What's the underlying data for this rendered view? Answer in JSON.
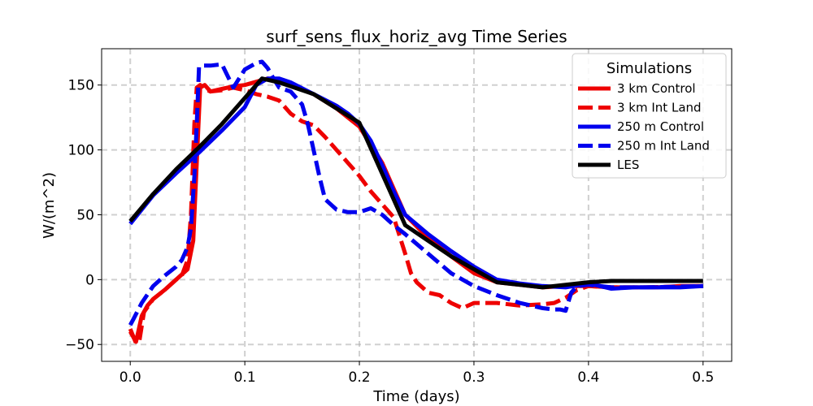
{
  "chart_data": {
    "type": "line",
    "title": "surf_sens_flux_horiz_avg Time Series",
    "xlabel": "Time (days)",
    "ylabel": "W/(m^2)",
    "xlim": [
      -0.025,
      0.525
    ],
    "ylim": [
      -63,
      178
    ],
    "xticks": [
      0.0,
      0.1,
      0.2,
      0.3,
      0.4,
      0.5
    ],
    "xtick_labels": [
      "0.0",
      "0.1",
      "0.2",
      "0.3",
      "0.4",
      "0.5"
    ],
    "yticks": [
      -50,
      0,
      50,
      100,
      150
    ],
    "ytick_labels": [
      "−50",
      "0",
      "50",
      "100",
      "150"
    ],
    "grid": true,
    "legend": {
      "title": "Simulations",
      "position": "top-right"
    },
    "series": [
      {
        "name": "3 km Control",
        "color": "#ee0000",
        "style": "solid",
        "x": [
          0.0,
          0.005,
          0.01,
          0.015,
          0.02,
          0.03,
          0.04,
          0.05,
          0.055,
          0.058,
          0.061,
          0.065,
          0.07,
          0.08,
          0.09,
          0.1,
          0.12,
          0.14,
          0.16,
          0.18,
          0.2,
          0.22,
          0.24,
          0.26,
          0.28,
          0.3,
          0.32,
          0.34,
          0.36,
          0.38,
          0.4,
          0.42,
          0.44,
          0.46,
          0.48,
          0.5
        ],
        "y": [
          -40,
          -48,
          -28,
          -20,
          -15,
          -8,
          0,
          8,
          30,
          90,
          148,
          150,
          145,
          147,
          149,
          150,
          155,
          150,
          143,
          132,
          118,
          90,
          50,
          32,
          18,
          5,
          -2,
          -4,
          -6,
          -5,
          -5,
          -6,
          -6,
          -6,
          -5,
          -5
        ]
      },
      {
        "name": "3 km Int Land",
        "color": "#ee0000",
        "style": "dashed",
        "x": [
          0.0,
          0.005,
          0.008,
          0.012,
          0.02,
          0.03,
          0.04,
          0.045,
          0.05,
          0.053,
          0.056,
          0.058,
          0.061,
          0.065,
          0.07,
          0.08,
          0.09,
          0.1,
          0.11,
          0.12,
          0.13,
          0.14,
          0.15,
          0.16,
          0.17,
          0.18,
          0.19,
          0.2,
          0.21,
          0.22,
          0.23,
          0.24,
          0.245,
          0.25,
          0.26,
          0.27,
          0.28,
          0.29,
          0.3,
          0.32,
          0.34,
          0.36,
          0.37,
          0.38,
          0.39,
          0.4,
          0.42,
          0.45,
          0.5
        ],
        "y": [
          -38,
          -49,
          -47,
          -25,
          -15,
          -8,
          0,
          3,
          15,
          50,
          120,
          148,
          150,
          147,
          145,
          146,
          148,
          146,
          143,
          141,
          138,
          128,
          122,
          119,
          110,
          100,
          90,
          80,
          68,
          58,
          48,
          20,
          5,
          -2,
          -10,
          -12,
          -18,
          -22,
          -18,
          -18,
          -20,
          -19,
          -18,
          -14,
          -8,
          -5,
          -6,
          -6,
          -5
        ]
      },
      {
        "name": "250 m Control",
        "color": "#0000ee",
        "style": "solid",
        "x": [
          0.0,
          0.02,
          0.04,
          0.06,
          0.08,
          0.1,
          0.11,
          0.12,
          0.13,
          0.14,
          0.16,
          0.18,
          0.19,
          0.2,
          0.21,
          0.22,
          0.23,
          0.24,
          0.26,
          0.28,
          0.3,
          0.32,
          0.34,
          0.36,
          0.38,
          0.4,
          0.42,
          0.44,
          0.46,
          0.48,
          0.5
        ],
        "y": [
          43,
          65,
          82,
          98,
          115,
          133,
          150,
          155,
          155,
          152,
          143,
          134,
          128,
          120,
          107,
          88,
          68,
          50,
          35,
          22,
          10,
          0,
          -3,
          -5,
          -6,
          -3,
          -7,
          -6,
          -6,
          -6,
          -5
        ]
      },
      {
        "name": "250 m Int Land",
        "color": "#0000ee",
        "style": "dashed",
        "x": [
          0.0,
          0.003,
          0.01,
          0.02,
          0.03,
          0.04,
          0.045,
          0.05,
          0.053,
          0.056,
          0.058,
          0.06,
          0.063,
          0.07,
          0.08,
          0.09,
          0.1,
          0.11,
          0.115,
          0.12,
          0.125,
          0.13,
          0.14,
          0.15,
          0.155,
          0.16,
          0.165,
          0.17,
          0.18,
          0.19,
          0.2,
          0.21,
          0.22,
          0.23,
          0.24,
          0.26,
          0.28,
          0.3,
          0.32,
          0.34,
          0.36,
          0.37,
          0.375,
          0.38,
          0.385,
          0.39,
          0.4,
          0.42,
          0.45,
          0.5
        ],
        "y": [
          -35,
          -30,
          -18,
          -5,
          3,
          10,
          15,
          25,
          40,
          80,
          120,
          164,
          165,
          165,
          166,
          148,
          162,
          167,
          168,
          163,
          155,
          148,
          145,
          135,
          120,
          100,
          80,
          62,
          54,
          52,
          52,
          55,
          50,
          42,
          35,
          20,
          5,
          -5,
          -12,
          -18,
          -22,
          -23,
          -23,
          -24,
          -10,
          -5,
          -4,
          -6,
          -6,
          -5
        ]
      },
      {
        "name": "LES",
        "color": "#000000",
        "style": "solid",
        "x": [
          0.0,
          0.02,
          0.04,
          0.06,
          0.08,
          0.1,
          0.115,
          0.13,
          0.16,
          0.2,
          0.24,
          0.28,
          0.32,
          0.36,
          0.4,
          0.42,
          0.46,
          0.5
        ],
        "y": [
          45,
          66,
          85,
          102,
          120,
          140,
          155,
          152,
          143,
          121,
          42,
          18,
          -2,
          -6,
          -2,
          -1,
          -1,
          -1
        ]
      }
    ]
  }
}
